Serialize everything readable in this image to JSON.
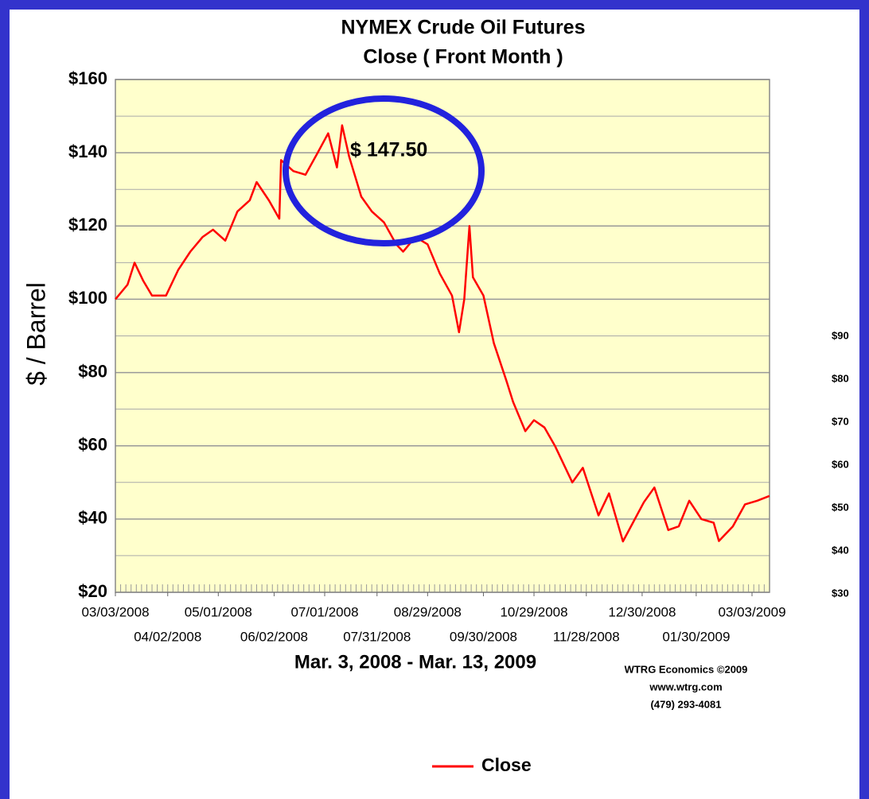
{
  "chart_data": {
    "type": "line",
    "title": "NYMEX Crude Oil Futures",
    "subtitle": "Close ( Front Month )",
    "y_label": "$ / Barrel",
    "x_label": "Mar. 3, 2008 - Mar. 13, 2009",
    "annotation": "$ 147.50",
    "credits": [
      "WTRG Economics ©2009",
      "www.wtrg.com",
      "(479) 293-4081"
    ],
    "x": [
      "03/03/2008",
      "03/10/2008",
      "03/14/2008",
      "03/19/2008",
      "03/24/2008",
      "04/01/2008",
      "04/08/2008",
      "04/15/2008",
      "04/22/2008",
      "04/28/2008",
      "05/05/2008",
      "05/12/2008",
      "05/19/2008",
      "05/23/2008",
      "05/30/2008",
      "06/05/2008",
      "06/06/2008",
      "06/13/2008",
      "06/20/2008",
      "06/27/2008",
      "07/03/2008",
      "07/08/2008",
      "07/11/2008",
      "07/15/2008",
      "07/22/2008",
      "07/28/2008",
      "08/04/2008",
      "08/11/2008",
      "08/15/2008",
      "08/22/2008",
      "08/29/2008",
      "09/05/2008",
      "09/12/2008",
      "09/16/2008",
      "09/19/2008",
      "09/22/2008",
      "09/24/2008",
      "09/30/2008",
      "10/06/2008",
      "10/13/2008",
      "10/17/2008",
      "10/24/2008",
      "10/29/2008",
      "11/04/2008",
      "11/10/2008",
      "11/20/2008",
      "11/26/2008",
      "12/05/2008",
      "12/11/2008",
      "12/19/2008",
      "12/31/2008",
      "01/06/2009",
      "01/14/2009",
      "01/20/2009",
      "01/26/2009",
      "02/02/2009",
      "02/09/2009",
      "02/12/2009",
      "02/20/2009",
      "02/27/2009",
      "03/06/2009",
      "03/13/2009"
    ],
    "series": [
      {
        "name": "Close",
        "color": "#ff0000",
        "values": [
          100,
          104,
          110,
          105,
          101,
          101,
          108,
          113,
          117,
          119,
          116,
          124,
          127,
          132,
          127,
          122,
          138,
          135,
          134,
          140,
          145.3,
          136,
          147.5,
          139,
          128,
          124,
          121,
          115,
          113,
          117,
          115,
          107,
          101,
          91,
          100,
          120,
          106,
          101,
          88,
          78,
          72,
          64,
          67,
          65,
          60,
          50,
          54,
          41,
          47,
          33.9,
          44.6,
          48.6,
          37,
          38,
          45,
          40,
          39,
          34,
          38,
          44,
          45,
          46.3
        ]
      }
    ],
    "xlim": [
      "03/03/2008",
      "03/13/2009"
    ],
    "xticks": [
      "03/03/2008",
      "04/02/2008",
      "05/01/2008",
      "06/02/2008",
      "07/01/2008",
      "07/31/2008",
      "08/29/2008",
      "09/30/2008",
      "10/29/2008",
      "11/28/2008",
      "12/30/2008",
      "01/30/2009",
      "03/03/2009"
    ],
    "ylim": [
      20,
      160
    ],
    "yticks": [
      {
        "value": 20,
        "label": "$20"
      },
      {
        "value": 40,
        "label": "$40"
      },
      {
        "value": 60,
        "label": "$60"
      },
      {
        "value": 80,
        "label": "$80"
      },
      {
        "value": 100,
        "label": "$100"
      },
      {
        "value": 120,
        "label": "$120"
      },
      {
        "value": 140,
        "label": "$140"
      },
      {
        "value": 160,
        "label": "$160"
      }
    ],
    "grid": true,
    "legend": "bottom",
    "background_fragment": [
      "$90",
      "$80",
      "$70",
      "$60",
      "$50",
      "$40",
      "$30"
    ]
  }
}
